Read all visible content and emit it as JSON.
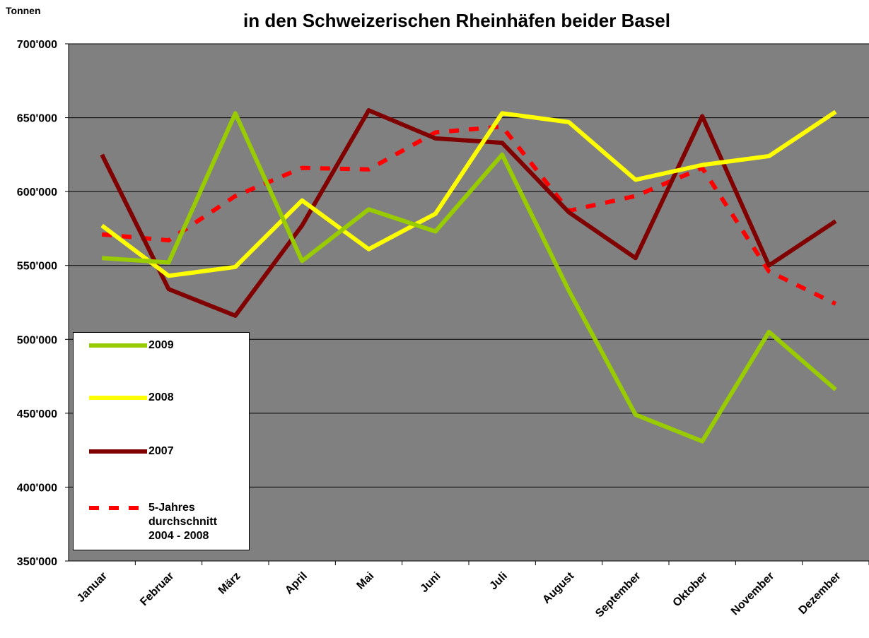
{
  "chart_data": {
    "type": "line",
    "title": "in den Schweizerischen Rheinhäfen beider Basel",
    "y_label": "Tonnen",
    "categories": [
      "Januar",
      "Februar",
      "März",
      "April",
      "Mai",
      "Juni",
      "Juli",
      "August",
      "September",
      "Oktober",
      "November",
      "Dezember"
    ],
    "series": [
      {
        "name": "2009",
        "color": "#99cc00",
        "dashed": false,
        "values": [
          555000,
          552000,
          653000,
          553000,
          588000,
          573000,
          625000,
          533000,
          449000,
          431000,
          505000,
          466000
        ]
      },
      {
        "name": "2008",
        "color": "#ffff00",
        "dashed": false,
        "values": [
          577000,
          543000,
          549000,
          594000,
          561000,
          585000,
          653000,
          647000,
          608000,
          618000,
          624000,
          654000
        ]
      },
      {
        "name": "2007",
        "color": "#800000",
        "dashed": false,
        "values": [
          625000,
          534000,
          516000,
          577000,
          655000,
          636000,
          633000,
          586000,
          555000,
          651000,
          550000,
          580000
        ]
      },
      {
        "name": "5-Jahres durchschnitt 2004 - 2008",
        "color": "#ff0000",
        "dashed": true,
        "values": [
          571000,
          567000,
          597000,
          616000,
          615000,
          640000,
          644000,
          587000,
          597000,
          616000,
          546000,
          524000
        ]
      }
    ],
    "ylim": [
      350000,
      700000
    ],
    "yticks": [
      {
        "value": 350000,
        "label": "350'000"
      },
      {
        "value": 400000,
        "label": "400'000"
      },
      {
        "value": 450000,
        "label": "450'000"
      },
      {
        "value": 500000,
        "label": "500'000"
      },
      {
        "value": 550000,
        "label": "550'000"
      },
      {
        "value": 600000,
        "label": "600'000"
      },
      {
        "value": 650000,
        "label": "650'000"
      },
      {
        "value": 700000,
        "label": "700'000"
      }
    ],
    "grid": true
  }
}
